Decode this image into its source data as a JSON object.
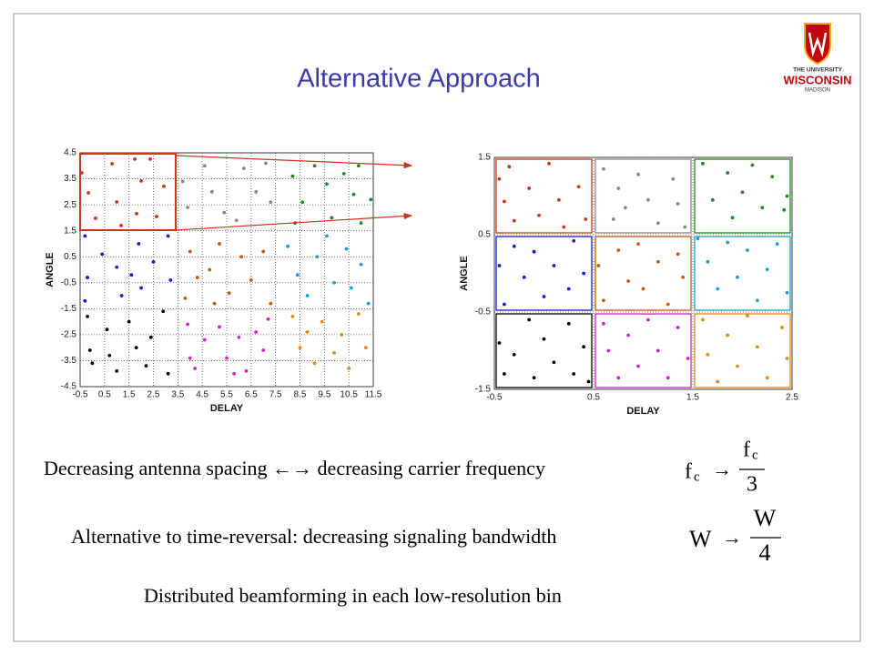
{
  "title": "Alternative Approach",
  "logo": {
    "line1": "THE UNIVERSITY",
    "line2": "WISCONSIN",
    "line3": "MADISON"
  },
  "chart_data": [
    {
      "type": "scatter",
      "xlabel": "DELAY",
      "ylabel": "ANGLE",
      "xlim": [
        -0.5,
        11.5
      ],
      "ylim": [
        -4.5,
        4.5
      ],
      "xticks": [
        -0.5,
        0.5,
        1.5,
        2.5,
        3.5,
        4.5,
        5.5,
        6.5,
        7.5,
        8.5,
        9.5,
        10.5,
        11.5
      ],
      "yticks": [
        4.5,
        3.5,
        2.5,
        1.5,
        0.5,
        -0.5,
        -1.5,
        -2.5,
        -3.5,
        -4.5
      ],
      "grid": true,
      "series": [
        {
          "color": "#c8361c",
          "x": [
            -0.43,
            -0.16,
            0.13,
            0.81,
            1.0,
            1.18,
            1.74,
            2.0,
            1.81,
            2.37,
            2.63,
            2.93
          ],
          "values": [
            3.73,
            2.96,
            1.98,
            4.08,
            2.61,
            1.7,
            4.26,
            3.42,
            2.16,
            4.26,
            2.05,
            3.21
          ]
        },
        {
          "color": "#888888",
          "x": [
            3.7,
            3.9,
            4.6,
            4.9,
            5.4,
            6.2,
            5.9,
            6.7,
            7.1,
            7.3
          ],
          "values": [
            3.4,
            2.4,
            4.0,
            3.0,
            2.2,
            3.9,
            1.9,
            3.0,
            4.1,
            2.6
          ]
        },
        {
          "color": "#1a8a1a",
          "x": [
            8.2,
            8.6,
            8.3,
            9.1,
            9.6,
            9.8,
            10.3,
            10.7,
            10.9,
            11.4,
            11.0
          ],
          "values": [
            3.6,
            2.6,
            1.8,
            4.0,
            3.3,
            2.0,
            3.7,
            2.9,
            4.0,
            2.7,
            1.8
          ]
        },
        {
          "color": "#1a1acc",
          "x": [
            -0.3,
            0.4,
            -0.2,
            1.0,
            -0.3,
            1.2,
            1.9,
            2.5,
            2.0,
            3.2,
            1.6,
            3.1
          ],
          "values": [
            1.3,
            0.6,
            -0.3,
            0.1,
            -1.2,
            -1.0,
            1.0,
            0.3,
            -0.7,
            -0.4,
            -0.2,
            1.3
          ]
        },
        {
          "color": "#c05a10",
          "x": [
            4.0,
            4.3,
            3.8,
            4.8,
            5.2,
            5.6,
            6.1,
            6.5,
            7.0,
            7.3,
            5.0
          ],
          "values": [
            0.7,
            -0.3,
            -1.1,
            0.0,
            1.0,
            -0.9,
            0.5,
            -0.4,
            0.7,
            -1.3,
            -1.3
          ]
        },
        {
          "color": "#1a9fd4",
          "x": [
            8.0,
            8.4,
            8.8,
            9.2,
            9.6,
            9.9,
            10.4,
            10.6,
            11.0,
            11.3
          ],
          "values": [
            0.9,
            -0.2,
            -1.0,
            0.5,
            1.3,
            -0.5,
            0.8,
            -0.7,
            0.2,
            -1.3
          ]
        },
        {
          "color": "#000000",
          "x": [
            -0.2,
            -0.1,
            0.0,
            0.6,
            0.7,
            1.0,
            1.5,
            1.8,
            2.2,
            2.9,
            3.1,
            2.4
          ],
          "values": [
            -1.8,
            -3.1,
            -3.6,
            -2.3,
            -3.3,
            -3.9,
            -2.0,
            -3.0,
            -3.7,
            -1.6,
            -4.0,
            -2.6
          ]
        },
        {
          "color": "#cc22cc",
          "x": [
            3.9,
            4.0,
            4.6,
            4.2,
            5.2,
            5.5,
            6.0,
            6.3,
            6.7,
            7.0,
            5.8,
            7.2
          ],
          "values": [
            -2.1,
            -3.4,
            -2.7,
            -3.8,
            -2.2,
            -3.4,
            -2.6,
            -3.9,
            -2.4,
            -3.1,
            -4.0,
            -1.9
          ]
        },
        {
          "color": "#e08a1a",
          "x": [
            8.2,
            8.5,
            8.8,
            9.1,
            9.4,
            9.9,
            10.2,
            10.5,
            10.9,
            11.2
          ],
          "values": [
            -1.8,
            -3.0,
            -2.4,
            -3.6,
            -2.0,
            -3.2,
            -2.5,
            -3.8,
            -1.7,
            -3.0
          ]
        }
      ]
    },
    {
      "type": "scatter",
      "xlabel": "DELAY",
      "ylabel": "ANGLE",
      "xlim": [
        -0.5,
        2.5
      ],
      "ylim": [
        -1.5,
        1.5
      ],
      "xticks": [
        -0.5,
        0.5,
        1.5,
        2.5
      ],
      "yticks": [
        1.5,
        0.5,
        -0.5,
        -1.5
      ],
      "grid": true,
      "bin_boxes": true,
      "series": [
        {
          "color": "#c8361c",
          "x": [
            -0.45,
            -0.4,
            -0.3,
            -0.15,
            -0.05,
            0.05,
            0.15,
            0.2,
            0.35,
            0.42,
            -0.35
          ],
          "values": [
            1.22,
            0.93,
            0.68,
            1.1,
            0.75,
            1.42,
            0.95,
            0.6,
            1.12,
            0.7,
            1.38
          ]
        },
        {
          "color": "#888888",
          "x": [
            0.6,
            0.75,
            0.82,
            0.95,
            1.05,
            1.15,
            1.3,
            1.35,
            1.42,
            0.7
          ],
          "values": [
            1.35,
            1.1,
            0.85,
            1.28,
            0.95,
            0.65,
            1.22,
            0.9,
            0.6,
            0.7
          ]
        },
        {
          "color": "#1a8a1a",
          "x": [
            1.6,
            1.7,
            1.85,
            1.9,
            2.0,
            2.1,
            2.2,
            2.3,
            2.42,
            2.45
          ],
          "values": [
            1.42,
            0.95,
            1.3,
            0.72,
            1.05,
            1.4,
            0.85,
            1.25,
            0.82,
            1.0
          ]
        },
        {
          "color": "#1a1acc",
          "x": [
            -0.45,
            -0.4,
            -0.3,
            -0.2,
            -0.1,
            0.0,
            0.1,
            0.25,
            0.3,
            0.4
          ],
          "values": [
            0.1,
            -0.4,
            0.35,
            -0.05,
            0.28,
            -0.3,
            0.1,
            -0.2,
            0.42,
            0.0
          ]
        },
        {
          "color": "#c05a10",
          "x": [
            0.55,
            0.6,
            0.75,
            0.85,
            0.95,
            1.0,
            1.15,
            1.25,
            1.35,
            1.4
          ],
          "values": [
            0.1,
            -0.35,
            0.3,
            -0.1,
            0.38,
            -0.2,
            0.15,
            -0.4,
            0.25,
            -0.05
          ]
        },
        {
          "color": "#1a9fd4",
          "x": [
            1.55,
            1.65,
            1.75,
            1.85,
            1.95,
            2.05,
            2.15,
            2.25,
            2.35,
            2.45
          ],
          "values": [
            0.45,
            0.15,
            -0.2,
            0.4,
            -0.05,
            0.3,
            -0.35,
            0.05,
            0.38,
            -0.25
          ]
        },
        {
          "color": "#000000",
          "x": [
            -0.45,
            -0.4,
            -0.3,
            -0.15,
            -0.1,
            0.0,
            0.1,
            0.25,
            0.3,
            0.45,
            0.4
          ],
          "values": [
            -0.9,
            -1.3,
            -1.05,
            -0.6,
            -1.35,
            -0.85,
            -1.15,
            -0.65,
            -1.3,
            -1.4,
            -0.95
          ]
        },
        {
          "color": "#cc22cc",
          "x": [
            0.6,
            0.65,
            0.75,
            0.85,
            0.95,
            1.05,
            1.15,
            1.25,
            1.35,
            1.45
          ],
          "values": [
            -0.65,
            -1.0,
            -1.35,
            -0.8,
            -1.2,
            -0.6,
            -1.0,
            -1.35,
            -0.7,
            -1.1
          ]
        },
        {
          "color": "#e08a1a",
          "x": [
            1.6,
            1.65,
            1.75,
            1.85,
            1.95,
            2.05,
            2.15,
            2.25,
            2.4,
            2.45
          ],
          "values": [
            -0.6,
            -1.05,
            -1.4,
            -0.8,
            -1.2,
            -0.55,
            -0.95,
            -1.35,
            -0.7,
            -1.1
          ]
        }
      ]
    }
  ],
  "bullets": [
    "Decreasing antenna spacing ←→ decreasing carrier frequency",
    "Alternative to time-reversal: decreasing signaling bandwidth",
    "Distributed beamforming in each low-resolution bin"
  ],
  "formulas": [
    {
      "lhs": "f",
      "lhs_sub": "c",
      "arrow": "→",
      "num": "f",
      "num_sub": "c",
      "den": "3"
    },
    {
      "lhs": "W",
      "arrow": "→",
      "num": "W",
      "den": "4"
    }
  ]
}
